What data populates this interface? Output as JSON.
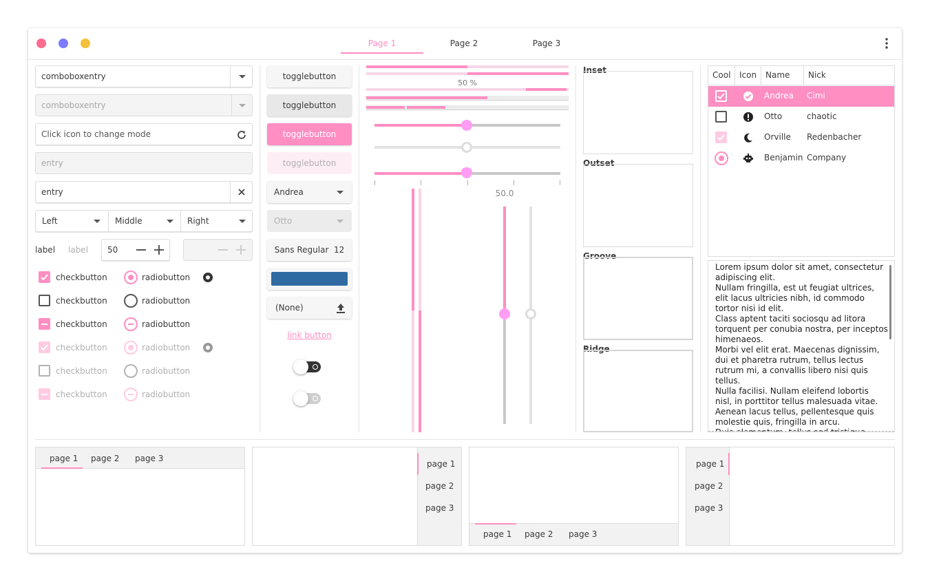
{
  "window": {
    "controls": [
      "close",
      "minimize",
      "maximize"
    ],
    "tabs": [
      {
        "label": "Page 1",
        "active": true
      },
      {
        "label": "Page 2",
        "active": false
      },
      {
        "label": "Page 3",
        "active": false
      }
    ],
    "menu_icon": "vertical-dots-icon"
  },
  "left": {
    "combo1": "comboboxentry",
    "combo2": "comboboxentry",
    "entry_mode_placeholder": "Click icon to change mode",
    "entry_disabled_placeholder": "entry",
    "entry_clear_value": "entry",
    "segmented": [
      "Left",
      "Middle",
      "Right"
    ],
    "label1": "label",
    "label2": "label",
    "spin_value": "50",
    "checks": [
      {
        "check": "checkbutton",
        "radio": "radiobutton",
        "state": "checked"
      },
      {
        "check": "checkbutton",
        "radio": "radiobutton",
        "state": "unchecked"
      },
      {
        "check": "checkbutton",
        "radio": "radiobutton",
        "state": "mixed"
      },
      {
        "check": "checkbutton",
        "radio": "radiobutton",
        "state": "checked-disabled"
      },
      {
        "check": "checkbutton",
        "radio": "radiobutton",
        "state": "unchecked-disabled"
      },
      {
        "check": "checkbutton",
        "radio": "radiobutton",
        "state": "mixed-disabled"
      }
    ]
  },
  "middle": {
    "toggles": [
      "togglebutton",
      "togglebutton",
      "togglebutton",
      "togglebutton"
    ],
    "combo_andrea": "Andrea",
    "combo_otto": "Otto",
    "font_button": "Sans Regular",
    "font_size": "12",
    "color_button": "#2f6aa3",
    "file_button": "(None)",
    "link_button": "link button",
    "switch1": true,
    "switch2": false
  },
  "progress": {
    "label": "50 %",
    "fraction": 0.5,
    "scale_value": "50.0"
  },
  "frames": [
    "Inset",
    "Outset",
    "Groove",
    "Ridge"
  ],
  "tree": {
    "columns": [
      "Cool",
      "Icon",
      "Name",
      "Nick"
    ],
    "rows": [
      {
        "cool": "checked",
        "icon": "check-circle-icon",
        "name": "Andrea",
        "nick": "Cimi",
        "selected": true
      },
      {
        "cool": "unchecked",
        "icon": "exclamation-circle-icon",
        "name": "Otto",
        "nick": "chaotic",
        "selected": false
      },
      {
        "cool": "checked",
        "icon": "moon-icon",
        "name": "Orville",
        "nick": "Redenbacher",
        "selected": false
      },
      {
        "cool": "radio",
        "icon": "robot-icon",
        "name": "Benjamin",
        "nick": "Company",
        "selected": false
      }
    ]
  },
  "textview": {
    "lines": [
      "Lorem ipsum dolor sit amet, consectetur",
      "adipiscing elit.",
      "Nullam fringilla, est ut feugiat ultrices,",
      "elit lacus ultricies nibh, id commodo",
      "tortor nisi id elit.",
      "Class aptent taciti sociosqu ad litora",
      "torquent per conubia nostra, per inceptos",
      "himenaeos.",
      "Morbi vel elit erat. Maecenas dignissim,",
      "dui et pharetra rutrum, tellus lectus",
      "rutrum mi, a convallis libero nisi quis",
      "tellus.",
      "Nulla facilisi. Nullam eleifend lobortis",
      "nisl, in porttitor tellus malesuada vitae.",
      "Aenean lacus tellus, pellentesque quis",
      "molestie quis, fringilla in arcu.",
      "Duis elementum, tellus sed tristique"
    ]
  },
  "notebooks": {
    "tabs": [
      "page 1",
      "page 2",
      "page 3"
    ]
  }
}
